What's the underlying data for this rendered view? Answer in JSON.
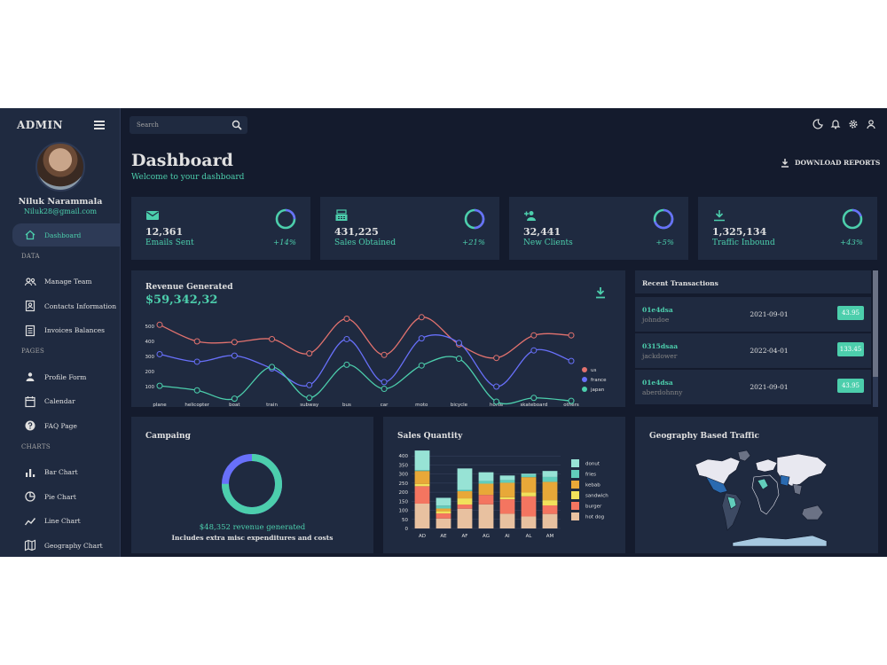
{
  "sidebar": {
    "brand": "ADMIN",
    "user_name": "Niluk Narammala",
    "user_email": "Niluk28@gmail.com",
    "items": [
      {
        "label": "Dashboard",
        "icon": "home-icon",
        "active": true
      },
      {
        "section": "DATA"
      },
      {
        "label": "Manage Team",
        "icon": "people-icon"
      },
      {
        "label": "Contacts Information",
        "icon": "contact-icon"
      },
      {
        "label": "Invoices Balances",
        "icon": "receipt-icon"
      },
      {
        "section": "PAGES"
      },
      {
        "label": "Profile Form",
        "icon": "person-icon"
      },
      {
        "label": "Calendar",
        "icon": "calendar-icon"
      },
      {
        "label": "FAQ Page",
        "icon": "help-icon"
      },
      {
        "section": "CHARTS"
      },
      {
        "label": "Bar Chart",
        "icon": "bar-chart-icon"
      },
      {
        "label": "Pie Chart",
        "icon": "pie-chart-icon"
      },
      {
        "label": "Line Chart",
        "icon": "line-chart-icon"
      },
      {
        "label": "Geography Chart",
        "icon": "map-icon"
      }
    ]
  },
  "topbar": {
    "search_placeholder": "Search",
    "icons": [
      "dark-mode-icon",
      "notifications-icon",
      "settings-icon",
      "user-icon"
    ]
  },
  "header": {
    "title": "Dashboard",
    "subtitle": "Welcome to your dashboard",
    "download_label": "DOWNLOAD REPORTS"
  },
  "stats": [
    {
      "value": "12,361",
      "label": "Emails Sent",
      "pct": "+14%",
      "progress": 0.75,
      "icon": "email-icon"
    },
    {
      "value": "431,225",
      "label": "Sales Obtained",
      "pct": "+21%",
      "progress": 0.5,
      "icon": "point-of-sale-icon"
    },
    {
      "value": "32,441",
      "label": "New Clients",
      "pct": "+5%",
      "progress": 0.3,
      "icon": "person-add-icon"
    },
    {
      "value": "1,325,134",
      "label": "Traffic Inbound",
      "pct": "+43%",
      "progress": 0.8,
      "icon": "traffic-icon"
    }
  ],
  "revenue": {
    "title": "Revenue Generated",
    "value": "$59,342,32"
  },
  "transactions": {
    "title": "Recent Transactions",
    "rows": [
      {
        "id": "01e4dsa",
        "user": "johndoe",
        "date": "2021-09-01",
        "cost": "43.95"
      },
      {
        "id": "0315dsaa",
        "user": "jackdower",
        "date": "2022-04-01",
        "cost": "133.45"
      },
      {
        "id": "01e4dsa",
        "user": "aberdohnny",
        "date": "2021-09-01",
        "cost": "43.95"
      }
    ]
  },
  "campaign": {
    "title": "Campaing",
    "value": "$48,352 revenue generated",
    "desc": "Includes extra misc expenditures and costs",
    "progress": 0.75
  },
  "sales": {
    "title": "Sales Quantity"
  },
  "geo": {
    "title": "Geography Based Traffic"
  },
  "colors": {
    "accent": "#4cceac",
    "blue": "#6870fa",
    "bg": "#141b2d",
    "card": "#1f2a40"
  },
  "chart_data": [
    {
      "type": "line",
      "categories": [
        "plane",
        "helicopter",
        "boat",
        "train",
        "subway",
        "bus",
        "car",
        "moto",
        "bicycle",
        "horse",
        "skateboard",
        "others"
      ],
      "ylim": [
        0,
        600
      ],
      "yticks": [
        100,
        200,
        300,
        400,
        500
      ],
      "legend": "right",
      "series": [
        {
          "name": "us",
          "color": "#e2726e",
          "values": [
            510,
            400,
            395,
            415,
            320,
            550,
            310,
            560,
            380,
            290,
            440,
            440
          ]
        },
        {
          "name": "france",
          "color": "#6870fa",
          "values": [
            315,
            265,
            305,
            220,
            110,
            415,
            130,
            420,
            390,
            100,
            340,
            270
          ]
        },
        {
          "name": "japan",
          "color": "#4cceac",
          "values": [
            105,
            75,
            20,
            230,
            25,
            245,
            85,
            240,
            285,
            0,
            25,
            5
          ]
        }
      ]
    },
    {
      "type": "bar",
      "stacked": true,
      "categories": [
        "AD",
        "AE",
        "AF",
        "AG",
        "AI",
        "AL",
        "AM"
      ],
      "ylim": [
        0,
        450
      ],
      "yticks": [
        0,
        50,
        100,
        150,
        200,
        250,
        300,
        350,
        400
      ],
      "legend": "right",
      "series": [
        {
          "name": "hot dog",
          "color": "#e8c1a0",
          "values": [
            137,
            55,
            109,
            133,
            81,
            66,
            80
          ]
        },
        {
          "name": "burger",
          "color": "#f47560",
          "values": [
            96,
            28,
            23,
            52,
            80,
            111,
            47
          ]
        },
        {
          "name": "sandwich",
          "color": "#f1e15b",
          "values": [
            12,
            12,
            34,
            0,
            11,
            21,
            29
          ]
        },
        {
          "name": "kebab",
          "color": "#e8a838",
          "values": [
            72,
            15,
            40,
            62,
            80,
            85,
            101
          ]
        },
        {
          "name": "fries",
          "color": "#61cdbb",
          "values": [
            5,
            16,
            7,
            15,
            15,
            13,
            27
          ]
        },
        {
          "name": "donut",
          "color": "#97e3d5",
          "values": [
            108,
            43,
            118,
            48,
            25,
            6,
            33
          ]
        }
      ]
    }
  ]
}
